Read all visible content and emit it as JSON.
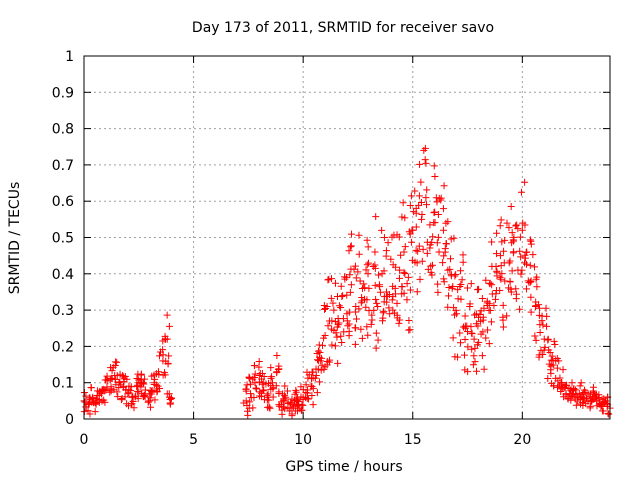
{
  "colors": {
    "series": "#ff0000",
    "grid": "#a0a0a0",
    "axis": "#000000"
  },
  "chart_data": {
    "type": "scatter",
    "title": "Day 173 of 2011, SRMTID for receiver savo",
    "xlabel": "GPS time / hours",
    "ylabel": "SRMTID / TECUs",
    "xlim": [
      0,
      24
    ],
    "ylim": [
      0,
      1
    ],
    "xticks": [
      0,
      5,
      10,
      15,
      20
    ],
    "yticks": [
      0,
      0.1,
      0.2,
      0.3,
      0.4,
      0.5,
      0.6,
      0.7,
      0.8,
      0.9,
      1
    ],
    "grid": true,
    "legend": "none",
    "marker": "plus",
    "series": [
      {
        "x": [
          0.0,
          0.2,
          0.4,
          0.6,
          0.8,
          1.0,
          1.2,
          1.4,
          1.6,
          1.8,
          2.0,
          2.2,
          2.4,
          2.6,
          2.8,
          3.0,
          3.2,
          3.4,
          3.6,
          3.8,
          3.9,
          7.4,
          7.6,
          7.8,
          8.0,
          8.2,
          8.4,
          8.6,
          8.8,
          9.0,
          9.2,
          9.4,
          9.6,
          9.8,
          10.0,
          10.2,
          10.4,
          10.6,
          10.8,
          11.0,
          11.2,
          11.4,
          11.6,
          11.8,
          12.0,
          12.2,
          12.4,
          12.6,
          12.8,
          13.0,
          13.2,
          13.4,
          13.6,
          13.8,
          14.0,
          14.2,
          14.4,
          14.6,
          14.8,
          15.0,
          15.2,
          15.4,
          15.6,
          15.8,
          16.0,
          16.2,
          16.4,
          16.6,
          16.8,
          17.0,
          17.2,
          17.4,
          17.6,
          17.8,
          18.0,
          18.2,
          18.4,
          18.6,
          18.8,
          19.0,
          19.2,
          19.4,
          19.6,
          19.8,
          20.0,
          20.2,
          20.4,
          20.6,
          20.8,
          21.0,
          21.2,
          21.4,
          21.6,
          21.8,
          22.0,
          22.2,
          22.4,
          22.6,
          22.8,
          23.0,
          23.2,
          23.4,
          23.6,
          23.8,
          24.0
        ],
        "y": [
          0.05,
          0.04,
          0.06,
          0.05,
          0.07,
          0.08,
          0.11,
          0.12,
          0.1,
          0.09,
          0.07,
          0.06,
          0.09,
          0.11,
          0.08,
          0.05,
          0.1,
          0.13,
          0.16,
          0.22,
          0.06,
          0.05,
          0.07,
          0.1,
          0.12,
          0.08,
          0.06,
          0.1,
          0.13,
          0.04,
          0.06,
          0.03,
          0.05,
          0.04,
          0.06,
          0.08,
          0.09,
          0.12,
          0.16,
          0.23,
          0.27,
          0.3,
          0.26,
          0.34,
          0.29,
          0.37,
          0.31,
          0.38,
          0.33,
          0.36,
          0.42,
          0.31,
          0.4,
          0.35,
          0.44,
          0.36,
          0.41,
          0.46,
          0.39,
          0.52,
          0.43,
          0.55,
          0.61,
          0.48,
          0.57,
          0.46,
          0.52,
          0.41,
          0.36,
          0.29,
          0.33,
          0.25,
          0.31,
          0.22,
          0.28,
          0.24,
          0.32,
          0.37,
          0.42,
          0.45,
          0.38,
          0.43,
          0.49,
          0.41,
          0.52,
          0.46,
          0.38,
          0.31,
          0.26,
          0.22,
          0.19,
          0.16,
          0.14,
          0.1,
          0.07,
          0.08,
          0.06,
          0.07,
          0.06,
          0.05,
          0.06,
          0.05,
          0.04,
          0.05,
          0.03
        ],
        "jitter": [
          0.03,
          0.03,
          0.03,
          0.03,
          0.03,
          0.04,
          0.04,
          0.04,
          0.05,
          0.04,
          0.04,
          0.03,
          0.04,
          0.04,
          0.04,
          0.03,
          0.05,
          0.06,
          0.07,
          0.07,
          0.02,
          0.05,
          0.05,
          0.05,
          0.06,
          0.05,
          0.04,
          0.05,
          0.06,
          0.03,
          0.04,
          0.03,
          0.03,
          0.03,
          0.04,
          0.05,
          0.06,
          0.07,
          0.08,
          0.1,
          0.12,
          0.12,
          0.12,
          0.14,
          0.12,
          0.14,
          0.13,
          0.14,
          0.13,
          0.14,
          0.15,
          0.13,
          0.15,
          0.14,
          0.16,
          0.15,
          0.16,
          0.16,
          0.15,
          0.17,
          0.16,
          0.17,
          0.16,
          0.15,
          0.16,
          0.15,
          0.16,
          0.15,
          0.14,
          0.12,
          0.13,
          0.12,
          0.12,
          0.1,
          0.12,
          0.11,
          0.12,
          0.13,
          0.14,
          0.14,
          0.13,
          0.14,
          0.14,
          0.14,
          0.15,
          0.14,
          0.13,
          0.12,
          0.1,
          0.09,
          0.08,
          0.07,
          0.06,
          0.04,
          0.03,
          0.03,
          0.03,
          0.03,
          0.03,
          0.02,
          0.03,
          0.02,
          0.02,
          0.02,
          0.02
        ]
      }
    ]
  }
}
